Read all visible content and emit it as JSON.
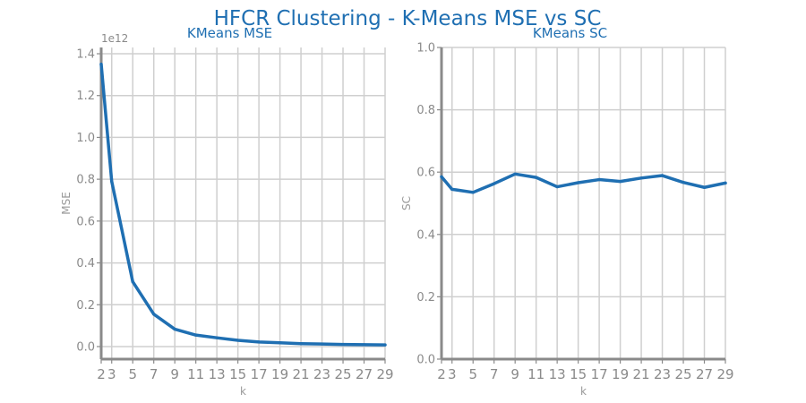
{
  "title": "HFCR Clustering - K-Means MSE vs SC",
  "colors": {
    "title": "#1f6fb2",
    "line": "#1f6fb2",
    "grid": "#cfcfcf",
    "axis": "#8a8a8a",
    "tick_text": "#8a8a8a"
  },
  "chart_data": [
    {
      "type": "line",
      "title": "KMeans MSE",
      "xlabel": "k",
      "ylabel": "MSE",
      "y_offset_label": "1e12",
      "x": [
        2,
        3,
        5,
        7,
        9,
        11,
        13,
        15,
        17,
        19,
        21,
        23,
        25,
        27,
        29
      ],
      "x_tick_labels": [
        "2",
        "3",
        "5",
        "7",
        "9",
        "11",
        "13",
        "15",
        "17",
        "19",
        "21",
        "23",
        "25",
        "27",
        "29"
      ],
      "y_ticks": [
        0.0,
        0.2,
        0.4,
        0.6,
        0.8,
        1.0,
        1.2,
        1.4
      ],
      "y_tick_labels": [
        "0.0",
        "0.2",
        "0.4",
        "0.6",
        "0.8",
        "1.0",
        "1.2",
        "1.4"
      ],
      "xlim": [
        2,
        29
      ],
      "ylim": [
        -0.06,
        1.43
      ],
      "grid": true,
      "series": [
        {
          "values": [
            1.35,
            0.79,
            0.31,
            0.155,
            0.083,
            0.055,
            0.042,
            0.03,
            0.022,
            0.018,
            0.014,
            0.012,
            0.01,
            0.009,
            0.008
          ]
        }
      ]
    },
    {
      "type": "line",
      "title": "KMeans SC",
      "xlabel": "k",
      "ylabel": "SC",
      "x": [
        2,
        3,
        5,
        7,
        9,
        11,
        13,
        15,
        17,
        19,
        21,
        23,
        25,
        27,
        29
      ],
      "x_tick_labels": [
        "2",
        "3",
        "5",
        "7",
        "9",
        "11",
        "13",
        "15",
        "17",
        "19",
        "21",
        "23",
        "25",
        "27",
        "29"
      ],
      "y_ticks": [
        0.0,
        0.2,
        0.4,
        0.6,
        0.8,
        1.0
      ],
      "y_tick_labels": [
        "0.0",
        "0.2",
        "0.4",
        "0.6",
        "0.8",
        "1.0"
      ],
      "xlim": [
        2,
        29
      ],
      "ylim": [
        0,
        1
      ],
      "grid": true,
      "series": [
        {
          "values": [
            0.585,
            0.545,
            0.535,
            0.563,
            0.594,
            0.583,
            0.553,
            0.566,
            0.576,
            0.57,
            0.581,
            0.589,
            0.567,
            0.551,
            0.565
          ]
        }
      ]
    }
  ]
}
